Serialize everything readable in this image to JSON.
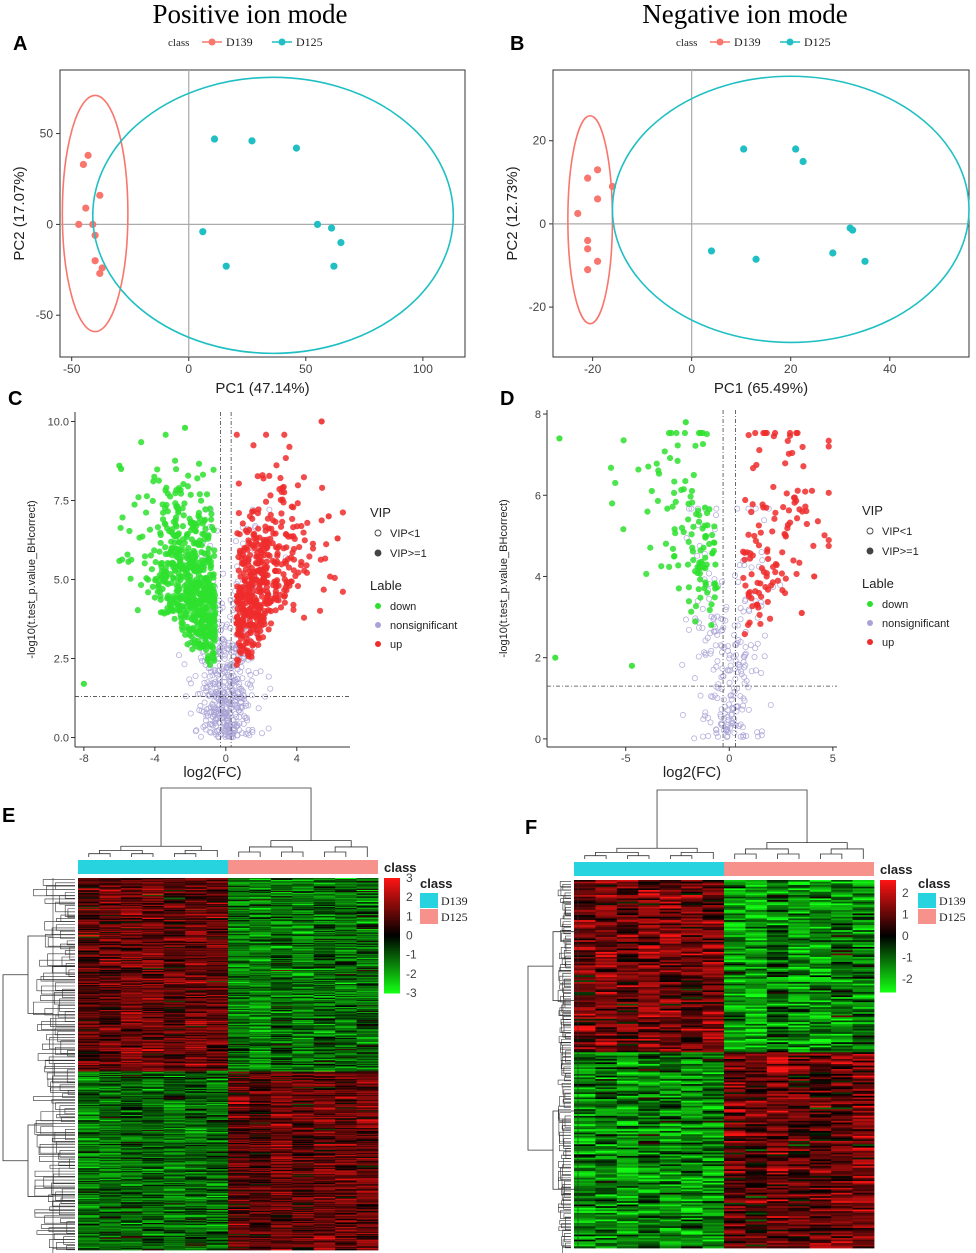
{
  "titles": {
    "left": "Positive ion mode",
    "right": "Negative ion mode"
  },
  "colors": {
    "d139": "#F8766D",
    "d125": "#1FBFC3",
    "up": "#EE2C2C",
    "down": "#2EE02E",
    "ns": "#A9A3D6",
    "hm_high": "#FF1A1A",
    "hm_low": "#1AFF1A",
    "hm_cls1": "#27D3DE",
    "hm_cls2": "#F7918B"
  },
  "chart_data": [
    {
      "panel": "A",
      "type": "scatter",
      "xlabel": "PC1 (47.14%)",
      "ylabel": "PC2 (17.07%)",
      "xlim": [
        -55,
        118
      ],
      "ylim": [
        -73,
        85
      ],
      "xticks": [
        -50,
        0,
        50,
        100
      ],
      "yticks": [
        -50,
        0,
        50
      ],
      "legend": {
        "title": "class",
        "items": [
          "D139",
          "D125"
        ]
      },
      "series": [
        {
          "name": "D139",
          "points": [
            [
              -43,
              38
            ],
            [
              -45,
              33
            ],
            [
              -38,
              16
            ],
            [
              -44,
              9
            ],
            [
              -41,
              0
            ],
            [
              -47,
              0
            ],
            [
              -40,
              -6
            ],
            [
              -40,
              -20
            ],
            [
              -37,
              -24
            ],
            [
              -38,
              -27
            ]
          ],
          "ellipse": {
            "cx": -40,
            "cy": 6,
            "rx": 14,
            "ry": 65
          }
        },
        {
          "name": "D125",
          "points": [
            [
              11,
              47
            ],
            [
              27,
              46
            ],
            [
              46,
              42
            ],
            [
              6,
              -4
            ],
            [
              16,
              -23
            ],
            [
              55,
              0
            ],
            [
              61,
              -2
            ],
            [
              65,
              -10
            ],
            [
              62,
              -23
            ]
          ],
          "ellipse": {
            "cx": 36,
            "cy": 5,
            "rx": 77,
            "ry": 76
          }
        }
      ]
    },
    {
      "panel": "B",
      "type": "scatter",
      "xlabel": "PC1 (65.49%)",
      "ylabel": "PC2 (12.73%)",
      "xlim": [
        -28,
        56
      ],
      "ylim": [
        -32,
        37
      ],
      "xticks": [
        -20,
        0,
        20,
        40
      ],
      "yticks": [
        -20,
        0,
        20
      ],
      "legend": {
        "title": "class",
        "items": [
          "D139",
          "D125"
        ]
      },
      "series": [
        {
          "name": "D139",
          "points": [
            [
              -19,
              13
            ],
            [
              -21,
              11
            ],
            [
              -16,
              9
            ],
            [
              -19,
              6
            ],
            [
              -23,
              2.5
            ],
            [
              -21,
              -4
            ],
            [
              -21,
              -6
            ],
            [
              -19,
              -9
            ],
            [
              -21,
              -11
            ]
          ],
          "ellipse": {
            "cx": -20.5,
            "cy": 1,
            "rx": 4.5,
            "ry": 25
          }
        },
        {
          "name": "D125",
          "points": [
            [
              10.5,
              18
            ],
            [
              21,
              18
            ],
            [
              22.5,
              15
            ],
            [
              4,
              -6.5
            ],
            [
              13,
              -8.5
            ],
            [
              28.5,
              -7
            ],
            [
              32,
              -1
            ],
            [
              32.5,
              -1.5
            ],
            [
              35,
              -9
            ]
          ],
          "ellipse": {
            "cx": 20,
            "cy": 3.5,
            "rx": 36,
            "ry": 32
          }
        }
      ]
    },
    {
      "panel": "C",
      "type": "scatter",
      "subtype": "volcano",
      "xlabel": "log2(FC)",
      "ylabel": "-log10(t.test_p.value_BHcorrect)",
      "xlim": [
        -8.5,
        7
      ],
      "ylim": [
        -0.3,
        10.3
      ],
      "xticks": [
        -8,
        -4,
        0,
        4
      ],
      "yticks": [
        0.0,
        2.5,
        5.0,
        7.5,
        10.0
      ],
      "vlines": [
        -0.3,
        0.3
      ],
      "hline": 1.3,
      "n_down": 620,
      "n_up": 440,
      "n_ns": 520,
      "seed": 7,
      "legend": {
        "vip_title": "VIP",
        "vip_items": [
          "VIP<1",
          "VIP>=1"
        ],
        "lab_title": "Lable",
        "lab_items": [
          "down",
          "nonsignificant",
          "up"
        ]
      },
      "highlight": [
        [
          -2.3,
          9.8
        ],
        [
          5.4,
          10.0
        ],
        [
          -6,
          8.6
        ],
        [
          -5.9,
          8.5
        ],
        [
          3.2,
          7.9
        ],
        [
          6.3,
          6.3
        ],
        [
          -8,
          1.7
        ],
        [
          5.8,
          7.0
        ]
      ]
    },
    {
      "panel": "D",
      "type": "scatter",
      "subtype": "volcano",
      "xlabel": "log2(FC)",
      "ylabel": "-log10(t.test_p.value_BHcorrect)",
      "xlim": [
        -8.8,
        5.2
      ],
      "ylim": [
        -0.2,
        8.1
      ],
      "xticks": [
        -5,
        0,
        5
      ],
      "yticks": [
        0,
        2,
        4,
        6,
        8
      ],
      "vlines": [
        -0.3,
        0.3
      ],
      "hline": 1.3,
      "n_down": 120,
      "n_up": 120,
      "n_ns": 240,
      "seed": 13,
      "legend": {
        "vip_title": "VIP",
        "vip_items": [
          "VIP<1",
          "VIP>=1"
        ],
        "lab_title": "Lable",
        "lab_items": [
          "down",
          "nonsignificant",
          "up"
        ]
      },
      "highlight": [
        [
          -8.2,
          7.4
        ],
        [
          -8.4,
          2.0
        ],
        [
          -4.7,
          1.8
        ],
        [
          -2.1,
          7.8
        ],
        [
          4.1,
          4.0
        ],
        [
          3.5,
          3.1
        ]
      ]
    },
    {
      "panel": "E",
      "type": "heatmap",
      "rows": 400,
      "cols": 14,
      "seed": 3,
      "split_row_frac": 0.52,
      "split_col": 7,
      "scale": {
        "min": -3,
        "max": 3,
        "ticks": [
          3,
          2,
          1,
          0,
          -1,
          -2,
          -3
        ]
      },
      "legend": {
        "title": "class",
        "items": [
          "D139",
          "D125"
        ]
      },
      "annotation_label": "class"
    },
    {
      "panel": "F",
      "type": "heatmap",
      "rows": 220,
      "cols": 14,
      "seed": 5,
      "split_row_frac": 0.47,
      "split_col": 7,
      "scale": {
        "min": -2.6,
        "max": 2.6,
        "ticks": [
          2,
          1,
          0,
          -1,
          -2
        ]
      },
      "legend": {
        "title": "class",
        "items": [
          "D139",
          "D125"
        ]
      },
      "annotation_label": "class"
    }
  ]
}
